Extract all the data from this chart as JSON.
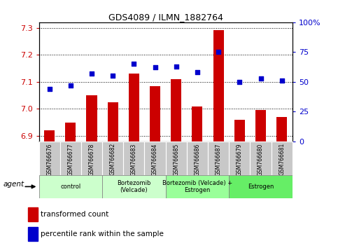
{
  "title": "GDS4089 / ILMN_1882764",
  "samples": [
    "GSM766676",
    "GSM766677",
    "GSM766678",
    "GSM766682",
    "GSM766683",
    "GSM766684",
    "GSM766685",
    "GSM766686",
    "GSM766687",
    "GSM766679",
    "GSM766680",
    "GSM766681"
  ],
  "bar_values": [
    6.92,
    6.95,
    7.05,
    7.025,
    7.13,
    7.085,
    7.11,
    7.01,
    7.29,
    6.96,
    6.995,
    6.97
  ],
  "dot_values": [
    44,
    47,
    57,
    55,
    65,
    62,
    63,
    58,
    75,
    50,
    53,
    51
  ],
  "bar_color": "#cc0000",
  "dot_color": "#0000cc",
  "ylim_left": [
    6.88,
    7.32
  ],
  "ylim_right": [
    0,
    100
  ],
  "yticks_left": [
    6.9,
    7.0,
    7.1,
    7.2,
    7.3
  ],
  "yticks_right": [
    0,
    25,
    50,
    75,
    100
  ],
  "ytick_labels_right": [
    "0",
    "25",
    "50",
    "75",
    "100%"
  ],
  "group_defs": [
    {
      "label": "control",
      "indices": [
        0,
        1,
        2
      ],
      "color": "#ccffcc"
    },
    {
      "label": "Bortezomib\n(Velcade)",
      "indices": [
        3,
        4,
        5
      ],
      "color": "#ccffcc"
    },
    {
      "label": "Bortezomib (Velcade) +\nEstrogen",
      "indices": [
        6,
        7,
        8
      ],
      "color": "#99ff99"
    },
    {
      "label": "Estrogen",
      "indices": [
        9,
        10,
        11
      ],
      "color": "#66ee66"
    }
  ],
  "legend_bar_label": "transformed count",
  "legend_dot_label": "percentile rank within the sample",
  "agent_label": "agent",
  "bar_color_left_tick": "#cc0000",
  "dot_color_right_tick": "#0000cc",
  "tick_bg_color": "#c8c8c8",
  "plot_bg_color": "#ffffff"
}
